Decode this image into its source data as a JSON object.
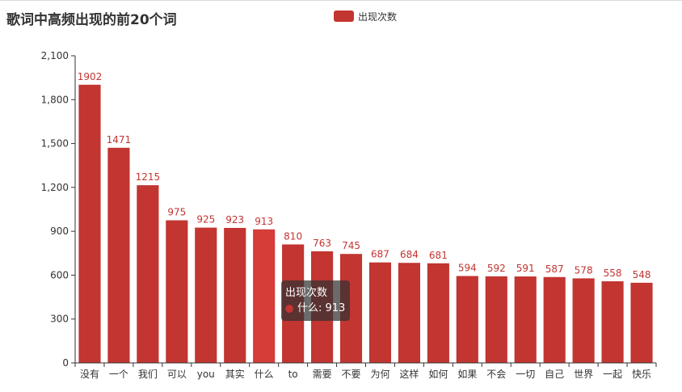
{
  "colors": {
    "series": "#c23531",
    "highlight": "#d63c38",
    "axis": "#333333",
    "text": "#333333"
  },
  "chart_data": {
    "type": "bar",
    "title": "歌词中高频出现的前20个词",
    "legend_position": "top-center",
    "grid": false,
    "categories": [
      "没有",
      "一个",
      "我们",
      "可以",
      "you",
      "其实",
      "什么",
      "to",
      "需要",
      "不要",
      "为何",
      "这样",
      "如何",
      "如果",
      "不会",
      "一切",
      "自己",
      "世界",
      "一起",
      "快乐"
    ],
    "series": [
      {
        "name": "出现次数",
        "values": [
          1902,
          1471,
          1215,
          975,
          925,
          923,
          913,
          810,
          763,
          745,
          687,
          684,
          681,
          594,
          592,
          591,
          587,
          578,
          558,
          548
        ]
      }
    ],
    "y_ticks": [
      "0",
      "300",
      "600",
      "900",
      "1,200",
      "1,500",
      "1,800",
      "2,100"
    ],
    "ylim": [
      0,
      2100
    ]
  },
  "tooltip": {
    "title": "出现次数",
    "category": "什么",
    "value": "913",
    "text": "什么: 913"
  }
}
